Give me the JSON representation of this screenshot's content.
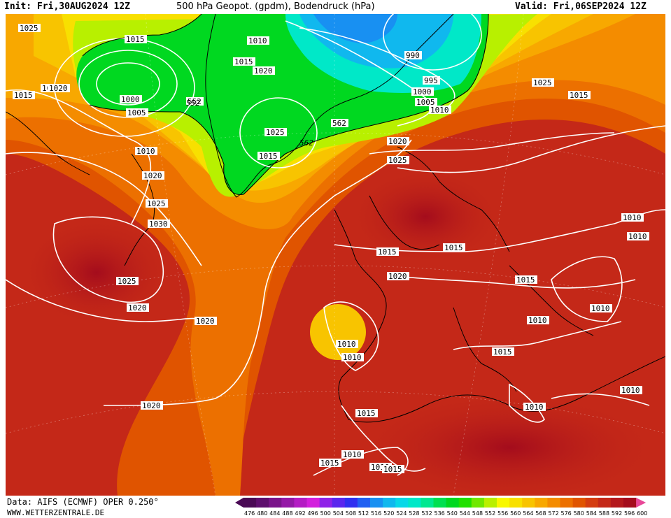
{
  "header": {
    "init": "Init: Fri,30AUG2024 12Z",
    "title": "500 hPa Geopot. (gpdm), Bodendruck (hPa)",
    "valid": "Valid: Fri,06SEP2024 12Z"
  },
  "footer": {
    "data_source": "Data: AIFS (ECMWF) OPER 0.250°",
    "website": "WWW.WETTERZENTRALE.DE"
  },
  "colorbar": {
    "ticks": [
      "476",
      "480",
      "484",
      "488",
      "492",
      "496",
      "500",
      "504",
      "508",
      "512",
      "516",
      "520",
      "524",
      "528",
      "532",
      "536",
      "540",
      "544",
      "548",
      "552",
      "556",
      "560",
      "564",
      "568",
      "572",
      "576",
      "580",
      "584",
      "588",
      "592",
      "596",
      "600"
    ],
    "colors": [
      "#4a0a55",
      "#5e0f6e",
      "#7a148a",
      "#9418a6",
      "#b41cc4",
      "#d320dd",
      "#8e22e8",
      "#5a26ee",
      "#2f2ff0",
      "#2060f2",
      "#1890f2",
      "#10b8ee",
      "#08d8e8",
      "#00e8c8",
      "#00e890",
      "#00e050",
      "#00d820",
      "#20e000",
      "#70e800",
      "#b8f000",
      "#f8f800",
      "#f8e000",
      "#f8c400",
      "#f8a800",
      "#f48c00",
      "#ec7000",
      "#e05400",
      "#d43c10",
      "#c42818",
      "#b4181c",
      "#a40c1c",
      "#e84898"
    ]
  },
  "isobar_labels": [
    "1025",
    "1015",
    "1010",
    "1020",
    "1015",
    "990",
    "995",
    "1000",
    "1005",
    "1010",
    "1020",
    "1025",
    "1020",
    "1000",
    "1005",
    "552",
    "1025",
    "1015",
    "562",
    "1010",
    "1015",
    "1020",
    "1025",
    "1020",
    "1025",
    "1030",
    "1025",
    "1020",
    "1020",
    "1015",
    "1020",
    "1015",
    "1010",
    "1010",
    "1015",
    "1010",
    "1010",
    "1020",
    "1015",
    "1010",
    "1010",
    "1015",
    "1010",
    "1010",
    "1015",
    "1010",
    "1010",
    "1015",
    "1015"
  ],
  "contour_labels": [
    "552",
    "562"
  ]
}
